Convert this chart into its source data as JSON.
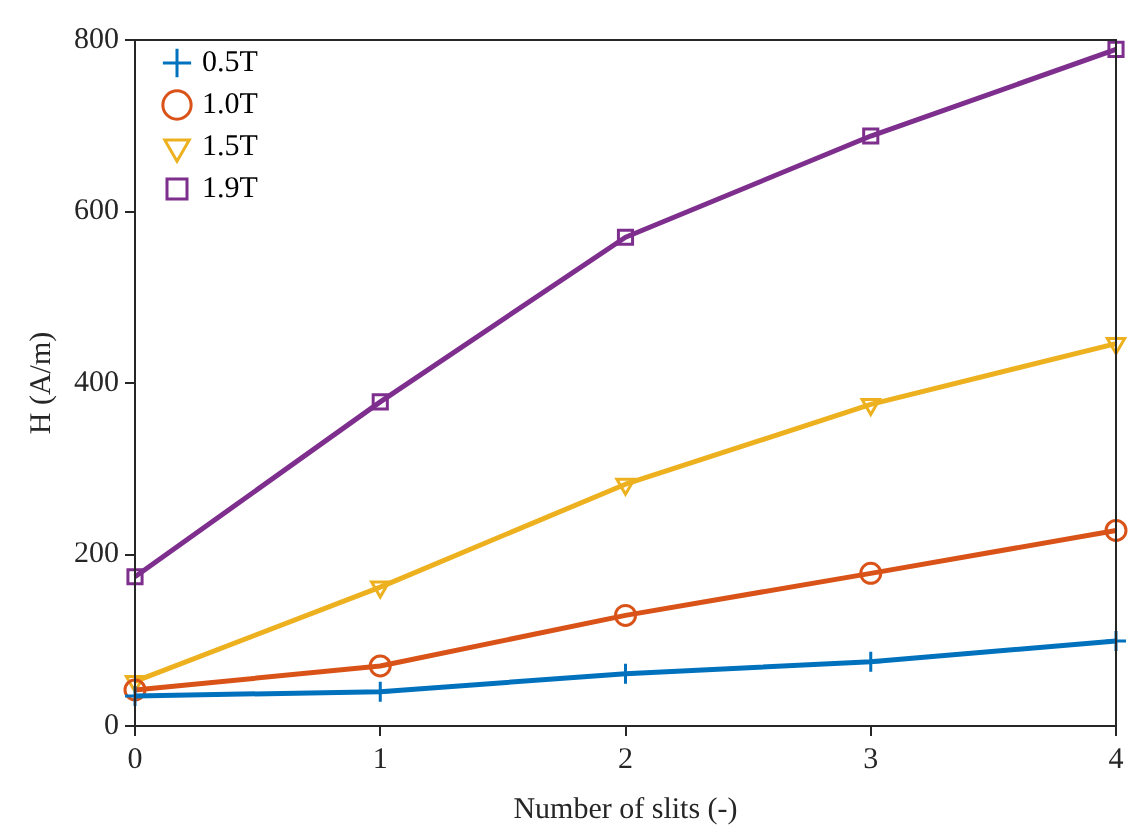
{
  "chart_data": {
    "type": "line",
    "xlabel": "Number of slits (-)",
    "ylabel": "H (A/m)",
    "x": [
      0,
      1,
      2,
      3,
      4
    ],
    "xlim": [
      0,
      4
    ],
    "xticks": [
      0,
      1,
      2,
      3,
      4
    ],
    "ylim": [
      0,
      800
    ],
    "yticks": [
      0,
      200,
      400,
      600,
      800
    ],
    "grid": false,
    "legend": "top left",
    "line_style": "solid",
    "series": [
      {
        "name": "0.5T",
        "color": "#0072bd",
        "marker": "cross",
        "values": [
          35,
          40,
          61,
          75,
          99
        ]
      },
      {
        "name": "1.0T",
        "color": "#d95319",
        "marker": "circle",
        "values": [
          42,
          70,
          129,
          178,
          228
        ]
      },
      {
        "name": "1.5T",
        "color": "#edb120",
        "marker": "triangle",
        "values": [
          52,
          162,
          282,
          375,
          446
        ]
      },
      {
        "name": "1.9T",
        "color": "#7e2f8e",
        "marker": "square",
        "values": [
          174,
          378,
          570,
          688,
          789
        ]
      }
    ]
  }
}
